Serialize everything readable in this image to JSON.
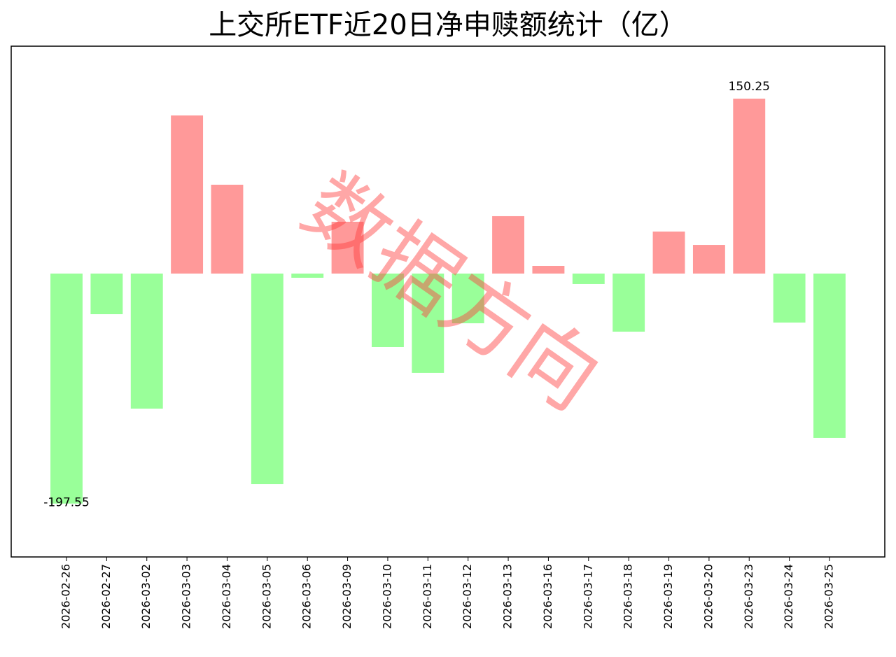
{
  "chart_data": {
    "type": "bar",
    "title": "上交所ETF近20日净申赎额统计（亿）",
    "watermark": "数据方向",
    "categories": [
      "2026-02-26",
      "2026-02-27",
      "2026-03-02",
      "2026-03-03",
      "2026-03-04",
      "2026-03-05",
      "2026-03-06",
      "2026-03-09",
      "2026-03-10",
      "2026-03-11",
      "2026-03-12",
      "2026-03-13",
      "2026-03-16",
      "2026-03-17",
      "2026-03-18",
      "2026-03-19",
      "2026-03-20",
      "2026-03-23",
      "2026-03-24",
      "2026-03-25"
    ],
    "values": [
      -197.55,
      -34.9,
      -116.0,
      135.8,
      76.3,
      -180.9,
      -3.6,
      44.5,
      -63.1,
      -85.3,
      -42.7,
      49.3,
      6.6,
      -9.0,
      -49.9,
      36.1,
      24.6,
      150.25,
      -42.1,
      -141.2
    ],
    "value_labels": [
      "-197.55",
      null,
      null,
      null,
      null,
      null,
      null,
      null,
      null,
      null,
      null,
      null,
      null,
      null,
      null,
      null,
      null,
      "150.25",
      null,
      null
    ],
    "color_positive": "#ff9999",
    "color_negative": "#99ff99",
    "ylim": [
      -243.4,
      195.3
    ]
  }
}
